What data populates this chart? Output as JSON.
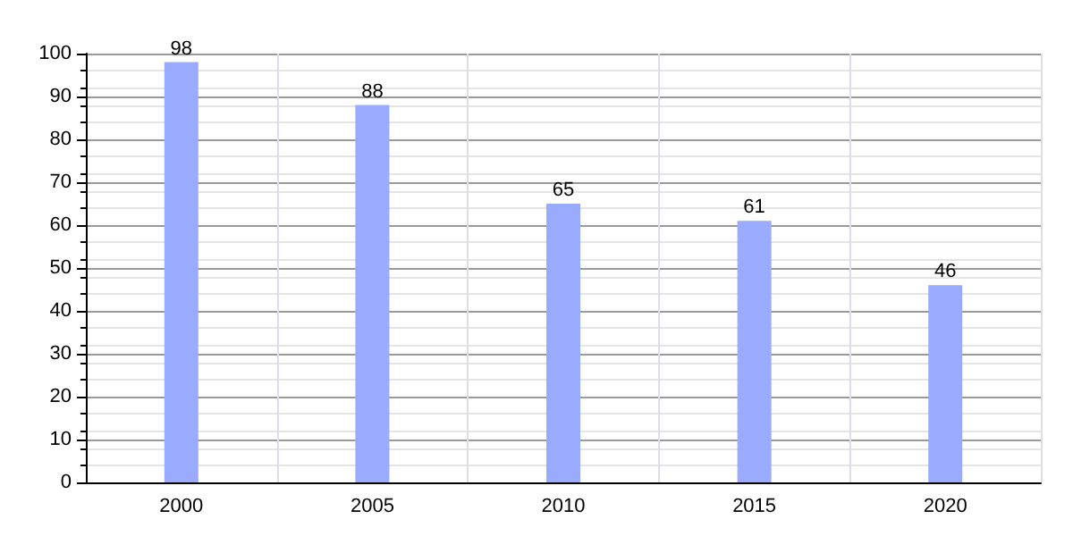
{
  "chart_data": {
    "type": "bar",
    "categories": [
      "2000",
      "2005",
      "2010",
      "2015",
      "2020"
    ],
    "values": [
      98,
      88,
      65,
      61,
      46
    ],
    "color": "#99aaff",
    "ylim": [
      0,
      100
    ],
    "yticks": [
      0,
      10,
      20,
      30,
      40,
      50,
      60,
      70,
      80,
      90,
      100
    ],
    "grid": true,
    "data_labels": true
  }
}
